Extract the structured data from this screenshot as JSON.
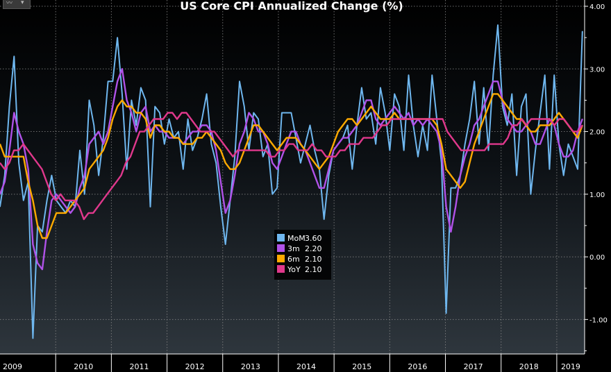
{
  "chart_data": {
    "type": "line",
    "title": "US Core CPI Annualized Change (%)",
    "y_ticks": [
      "4.00",
      "3.00",
      "2.00",
      "1.00",
      "0.00",
      "-1.00"
    ],
    "ylim": [
      -1.55,
      4.1
    ],
    "x_labels": [
      "2009",
      "2010",
      "2011",
      "2012",
      "2013",
      "2014",
      "2015",
      "2016",
      "2017",
      "2018",
      "2019"
    ],
    "x_start": 2009.0,
    "x_end": 2019.5,
    "legend": [
      {
        "name": "MoM",
        "value": "3.60",
        "color": "#6fb7ef"
      },
      {
        "name": "3m",
        "value": "2.20",
        "color": "#b052e8"
      },
      {
        "name": "6m",
        "value": "2.10",
        "color": "#ffaa00"
      },
      {
        "name": "YoY",
        "value": "2.10",
        "color": "#e0388c"
      }
    ],
    "series": [
      {
        "name": "MoM",
        "color": "#6fb7ef",
        "values": [
          0.8,
          1.3,
          2.4,
          3.2,
          1.5,
          0.9,
          1.2,
          -1.3,
          0.5,
          0.4,
          0.9,
          1.3,
          0.9,
          0.8,
          0.7,
          0.9,
          0.8,
          1.7,
          1.0,
          2.5,
          2.1,
          1.3,
          1.9,
          2.8,
          2.8,
          3.5,
          2.6,
          1.4,
          2.5,
          2.1,
          2.7,
          2.5,
          0.8,
          2.4,
          2.3,
          1.8,
          2.2,
          1.9,
          2.0,
          1.4,
          2.2,
          1.7,
          1.9,
          2.2,
          2.6,
          1.8,
          1.5,
          0.8,
          0.2,
          0.9,
          1.6,
          2.8,
          2.4,
          1.7,
          2.3,
          2.2,
          1.6,
          1.8,
          1.0,
          1.1,
          2.3,
          2.3,
          2.3,
          1.9,
          1.5,
          1.8,
          2.1,
          1.7,
          1.4,
          0.6,
          1.3,
          1.7,
          1.8,
          1.9,
          2.1,
          1.4,
          2.1,
          2.7,
          2.2,
          2.3,
          1.8,
          2.7,
          2.3,
          1.7,
          2.6,
          2.4,
          1.7,
          2.9,
          2.1,
          1.6,
          2.1,
          1.7,
          2.9,
          2.2,
          1.5,
          -0.9,
          1.1,
          1.1,
          1.3,
          1.8,
          2.2,
          2.8,
          1.8,
          2.7,
          1.7,
          2.9,
          3.7,
          2.4,
          2.1,
          2.6,
          1.3,
          2.4,
          2.6,
          1.0,
          1.7,
          2.3,
          2.9,
          1.4,
          2.9,
          1.8,
          1.3,
          1.8,
          1.6,
          1.4,
          3.6
        ]
      },
      {
        "name": "3m",
        "color": "#b052e8",
        "values": [
          1.0,
          1.2,
          1.7,
          2.3,
          2.0,
          1.8,
          1.4,
          0.2,
          -0.1,
          -0.2,
          0.4,
          0.9,
          1.0,
          0.9,
          0.8,
          0.7,
          0.8,
          1.1,
          1.3,
          1.8,
          1.9,
          2.0,
          1.8,
          2.0,
          2.4,
          2.8,
          3.0,
          2.5,
          2.3,
          2.0,
          2.3,
          2.4,
          2.0,
          2.1,
          2.0,
          2.0,
          1.9,
          1.9,
          1.9,
          1.8,
          1.9,
          2.0,
          2.0,
          2.1,
          2.1,
          2.0,
          1.7,
          1.2,
          0.7,
          0.9,
          1.3,
          1.8,
          2.0,
          2.3,
          2.2,
          2.0,
          2.0,
          1.8,
          1.5,
          1.4,
          1.6,
          1.8,
          2.0,
          2.0,
          1.8,
          1.7,
          1.5,
          1.3,
          1.1,
          1.1,
          1.4,
          1.7,
          1.8,
          1.9,
          1.9,
          2.0,
          2.1,
          2.3,
          2.5,
          2.5,
          2.2,
          2.1,
          2.2,
          2.3,
          2.4,
          2.3,
          2.2,
          2.3,
          2.1,
          2.2,
          2.1,
          2.2,
          2.1,
          2.0,
          1.7,
          0.8,
          0.4,
          0.8,
          1.3,
          1.6,
          1.8,
          2.1,
          2.2,
          2.4,
          2.6,
          2.8,
          2.8,
          2.5,
          2.2,
          2.1,
          2.0,
          2.0,
          2.1,
          2.0,
          1.8,
          1.8,
          2.0,
          2.2,
          2.1,
          1.8,
          1.6,
          1.6,
          1.7,
          2.0,
          2.2
        ]
      },
      {
        "name": "6m",
        "color": "#ffaa00",
        "values": [
          1.8,
          1.6,
          1.6,
          1.6,
          1.6,
          1.6,
          1.2,
          0.9,
          0.5,
          0.3,
          0.3,
          0.5,
          0.7,
          0.7,
          0.7,
          0.8,
          0.9,
          1.0,
          1.1,
          1.4,
          1.5,
          1.6,
          1.7,
          1.9,
          2.2,
          2.4,
          2.5,
          2.4,
          2.4,
          2.3,
          2.3,
          2.2,
          1.9,
          2.1,
          2.1,
          2.0,
          2.0,
          1.9,
          1.9,
          1.8,
          1.8,
          1.8,
          1.9,
          1.9,
          2.0,
          1.9,
          1.8,
          1.7,
          1.5,
          1.4,
          1.4,
          1.5,
          1.7,
          1.9,
          2.1,
          2.1,
          2.0,
          1.9,
          1.8,
          1.7,
          1.8,
          1.9,
          1.9,
          1.9,
          1.8,
          1.7,
          1.6,
          1.5,
          1.4,
          1.5,
          1.6,
          1.8,
          2.0,
          2.1,
          2.2,
          2.2,
          2.1,
          2.2,
          2.3,
          2.4,
          2.3,
          2.2,
          2.2,
          2.2,
          2.3,
          2.2,
          2.2,
          2.2,
          2.2,
          2.2,
          2.2,
          2.2,
          2.2,
          2.1,
          1.8,
          1.4,
          1.3,
          1.2,
          1.1,
          1.2,
          1.5,
          1.8,
          2.0,
          2.2,
          2.4,
          2.6,
          2.6,
          2.5,
          2.4,
          2.3,
          2.2,
          2.2,
          2.1,
          2.0,
          2.0,
          2.1,
          2.1,
          2.1,
          2.2,
          2.3,
          2.2,
          2.1,
          2.0,
          1.9,
          2.1
        ]
      },
      {
        "name": "YoY",
        "color": "#e0388c",
        "values": [
          1.5,
          1.4,
          1.5,
          1.7,
          1.7,
          1.8,
          1.7,
          1.6,
          1.5,
          1.4,
          1.2,
          1.0,
          0.9,
          1.0,
          0.9,
          0.9,
          0.9,
          0.8,
          0.6,
          0.7,
          0.7,
          0.8,
          0.9,
          1.0,
          1.1,
          1.2,
          1.3,
          1.5,
          1.6,
          1.8,
          2.0,
          2.0,
          2.1,
          2.2,
          2.2,
          2.2,
          2.3,
          2.3,
          2.2,
          2.3,
          2.3,
          2.2,
          2.1,
          2.0,
          2.0,
          2.0,
          2.0,
          1.9,
          1.8,
          1.7,
          1.6,
          1.7,
          1.7,
          1.7,
          1.7,
          1.7,
          1.7,
          1.7,
          1.6,
          1.6,
          1.7,
          1.7,
          1.8,
          1.8,
          1.7,
          1.7,
          1.7,
          1.8,
          1.7,
          1.7,
          1.6,
          1.6,
          1.6,
          1.7,
          1.7,
          1.8,
          1.8,
          1.8,
          1.9,
          1.9,
          1.9,
          2.0,
          2.1,
          2.1,
          2.2,
          2.2,
          2.2,
          2.2,
          2.2,
          2.2,
          2.2,
          2.2,
          2.2,
          2.2,
          2.2,
          2.2,
          2.0,
          1.9,
          1.8,
          1.7,
          1.7,
          1.7,
          1.7,
          1.7,
          1.7,
          1.8,
          1.8,
          1.8,
          1.8,
          1.9,
          2.1,
          2.1,
          2.2,
          2.1,
          2.2,
          2.2,
          2.2,
          2.2,
          2.2,
          2.1,
          2.2,
          2.2,
          2.1,
          2.0,
          2.0,
          2.1
        ]
      }
    ]
  },
  "icon": "line-chart-icon"
}
